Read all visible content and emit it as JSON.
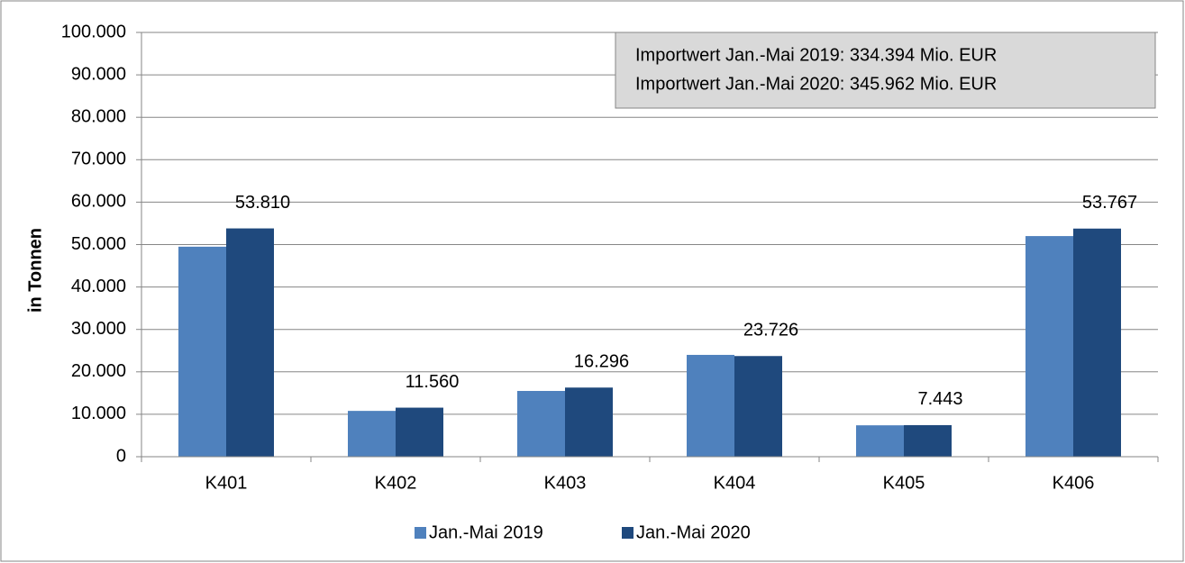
{
  "chart_data": {
    "type": "bar",
    "y_label": "in Tonnen",
    "categories": [
      "K401",
      "K402",
      "K403",
      "K404",
      "K405",
      "K406"
    ],
    "series": [
      {
        "name": "Jan.-Mai 2019",
        "color": "#4f81bd",
        "values": [
          49500,
          10800,
          15500,
          24000,
          7400,
          52000
        ]
      },
      {
        "name": "Jan.-Mai 2020",
        "color": "#1f497d",
        "values": [
          53810,
          11560,
          16296,
          23726,
          7443,
          53767
        ],
        "value_labels": [
          "53.810",
          "11.560",
          "16.296",
          "23.726",
          "7.443",
          "53.767"
        ]
      }
    ],
    "ylim": [
      0,
      100000
    ],
    "yticks": [
      0,
      {
        "value": 10000,
        "label": "10.000"
      },
      {
        "value": 20000,
        "label": "20.000"
      },
      {
        "value": 30000,
        "label": "30.000"
      },
      {
        "value": 40000,
        "label": "40.000"
      },
      {
        "value": 50000,
        "label": "50.000"
      },
      {
        "value": 60000,
        "label": "60.000"
      },
      {
        "value": 70000,
        "label": "70.000"
      },
      {
        "value": 80000,
        "label": "80.000"
      },
      {
        "value": 90000,
        "label": "90.000"
      },
      {
        "value": 100000,
        "label": "100.000"
      }
    ],
    "grid": true,
    "legend": "bottom",
    "annotations": [
      "Importwert Jan.-Mai 2019: 334.394 Mio. EUR",
      "Importwert Jan.-Mai 2020: 345.962 Mio. EUR"
    ]
  }
}
